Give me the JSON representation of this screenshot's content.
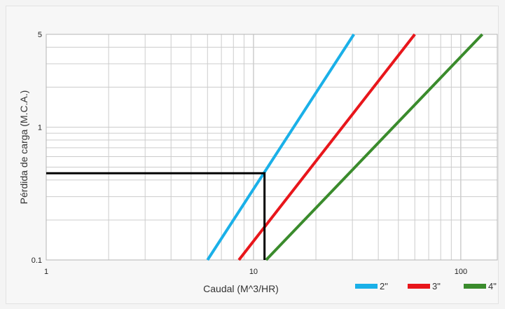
{
  "chart_data": {
    "type": "line",
    "x_scale": "log",
    "y_scale": "log",
    "xlim": [
      1,
      150
    ],
    "ylim": [
      0.1,
      5
    ],
    "xlabel": "Caudal (M^3/HR)",
    "ylabel": "Pérdida de carga (M.C.A.)",
    "x_tick_labels": [
      {
        "value": 1,
        "label": "1"
      },
      {
        "value": 10,
        "label": "10"
      },
      {
        "value": 100,
        "label": "100"
      }
    ],
    "y_tick_labels": [
      {
        "value": 0.1,
        "label": "0.1"
      },
      {
        "value": 1,
        "label": "1"
      },
      {
        "value": 5,
        "label": "5"
      }
    ],
    "grid": true,
    "legend_position": "bottom-right",
    "series": [
      {
        "name": "2\"",
        "color": "#1ab0e8",
        "points": [
          [
            6.0,
            0.1
          ],
          [
            30.5,
            5
          ]
        ]
      },
      {
        "name": "3\"",
        "color": "#e8161b",
        "points": [
          [
            8.5,
            0.1
          ],
          [
            60.0,
            5
          ]
        ]
      },
      {
        "name": "4\"",
        "color": "#3a8b2c",
        "points": [
          [
            11.5,
            0.1
          ],
          [
            127.0,
            5
          ]
        ]
      }
    ],
    "annotation": {
      "color": "#000000",
      "points": [
        [
          1,
          0.45
        ],
        [
          11.3,
          0.45
        ],
        [
          11.3,
          0.1
        ]
      ]
    }
  }
}
